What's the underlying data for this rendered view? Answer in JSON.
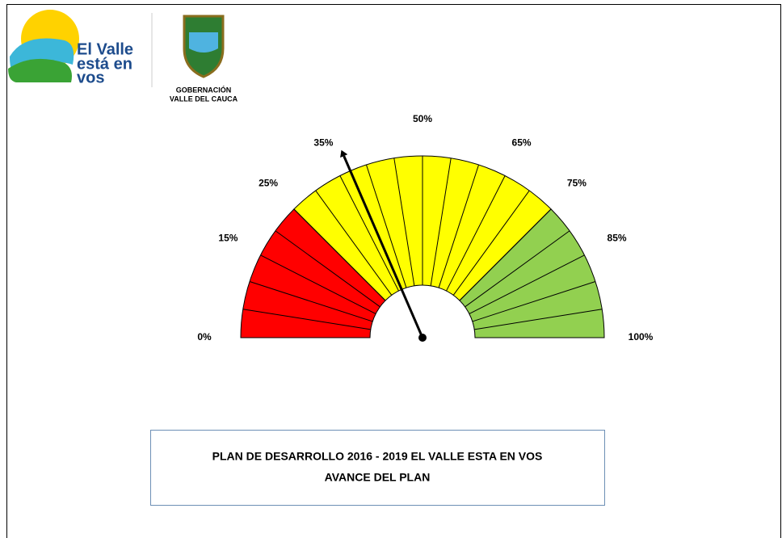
{
  "header": {
    "logo_text": [
      "El Valle",
      "está en",
      "vos"
    ],
    "org": [
      "GOBERNACIÓN",
      "VALLE DEL CAUCA"
    ]
  },
  "chart_data": {
    "type": "gauge",
    "title": [
      "PLAN DE DESARROLLO 2016 - 2019 EL VALLE ESTA EN VOS",
      "AVANCE DEL PLAN"
    ],
    "value": 37,
    "range": [
      0,
      100
    ],
    "divisions": 20,
    "bands": [
      {
        "from": 0,
        "to": 25,
        "color": "#ff0000"
      },
      {
        "from": 25,
        "to": 75,
        "color": "#ffff00"
      },
      {
        "from": 75,
        "to": 100,
        "color": "#92d050"
      }
    ],
    "ticks": [
      {
        "value": 0,
        "label": "0%"
      },
      {
        "value": 15,
        "label": "15%"
      },
      {
        "value": 25,
        "label": "25%"
      },
      {
        "value": 35,
        "label": "35%"
      },
      {
        "value": 50,
        "label": "50%"
      },
      {
        "value": 65,
        "label": "65%"
      },
      {
        "value": 75,
        "label": "75%"
      },
      {
        "value": 85,
        "label": "85%"
      },
      {
        "value": 100,
        "label": "100%"
      }
    ]
  }
}
